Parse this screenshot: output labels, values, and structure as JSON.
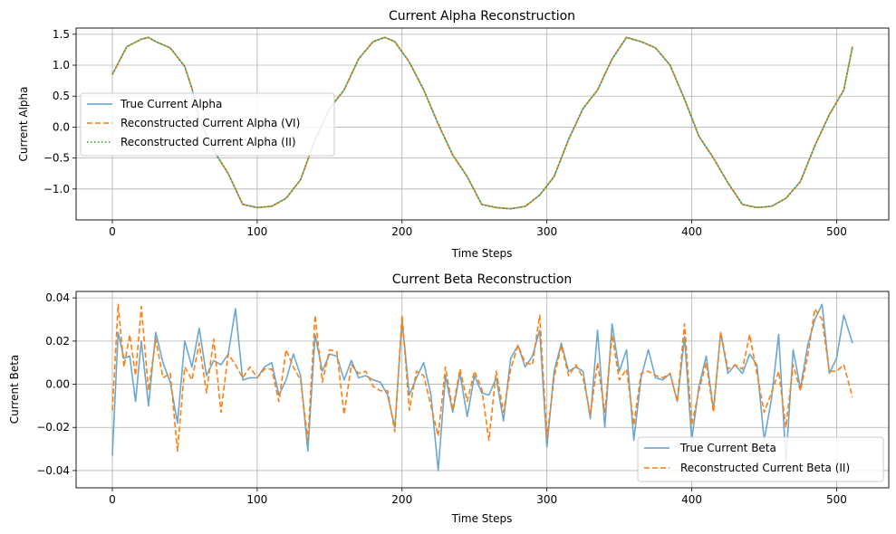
{
  "chart_data": [
    {
      "type": "line",
      "title": "Current Alpha Reconstruction",
      "xlabel": "Time Steps",
      "ylabel": "Current Alpha",
      "xlim": [
        -25,
        536
      ],
      "ylim": [
        -1.5,
        1.6
      ],
      "xticks": [
        0,
        100,
        200,
        300,
        400,
        500
      ],
      "yticks": [
        -1.0,
        -0.5,
        0.0,
        0.5,
        1.0,
        1.5
      ],
      "ytick_labels": [
        "−1.0",
        "−0.5",
        "0.0",
        "0.5",
        "1.0",
        "1.5"
      ],
      "grid": true,
      "legend_position": "center-left",
      "x": [
        0,
        10,
        20,
        25,
        30,
        40,
        50,
        55,
        60,
        70,
        80,
        90,
        100,
        110,
        120,
        130,
        140,
        150,
        160,
        170,
        180,
        188,
        195,
        205,
        215,
        225,
        235,
        245,
        255,
        265,
        275,
        285,
        295,
        305,
        315,
        325,
        335,
        345,
        355,
        365,
        375,
        385,
        395,
        405,
        415,
        425,
        435,
        445,
        455,
        465,
        475,
        485,
        495,
        505,
        511
      ],
      "series": [
        {
          "name": "True Current Alpha",
          "color": "#5b9ec9",
          "dash": "solid",
          "values": [
            0.85,
            1.3,
            1.42,
            1.45,
            1.38,
            1.28,
            0.98,
            0.62,
            0.12,
            -0.38,
            -0.75,
            -1.25,
            -1.3,
            -1.28,
            -1.15,
            -0.85,
            -0.2,
            0.3,
            0.6,
            1.1,
            1.38,
            1.45,
            1.38,
            1.05,
            0.6,
            0.05,
            -0.45,
            -0.8,
            -1.25,
            -1.3,
            -1.32,
            -1.28,
            -1.1,
            -0.8,
            -0.2,
            0.3,
            0.6,
            1.1,
            1.45,
            1.38,
            1.28,
            1.0,
            0.45,
            -0.15,
            -0.5,
            -0.9,
            -1.25,
            -1.3,
            -1.28,
            -1.15,
            -0.88,
            -0.3,
            0.2,
            0.6,
            1.3
          ]
        },
        {
          "name": "Reconstructed Current Alpha (VI)",
          "color": "#ff7f0e",
          "dash": "dashed",
          "values": [
            0.85,
            1.3,
            1.42,
            1.45,
            1.38,
            1.28,
            0.98,
            0.62,
            0.12,
            -0.38,
            -0.75,
            -1.25,
            -1.3,
            -1.28,
            -1.15,
            -0.85,
            -0.2,
            0.3,
            0.6,
            1.1,
            1.38,
            1.45,
            1.38,
            1.05,
            0.6,
            0.05,
            -0.45,
            -0.8,
            -1.25,
            -1.3,
            -1.32,
            -1.28,
            -1.1,
            -0.8,
            -0.2,
            0.3,
            0.6,
            1.1,
            1.45,
            1.38,
            1.28,
            1.0,
            0.45,
            -0.15,
            -0.5,
            -0.9,
            -1.25,
            -1.3,
            -1.28,
            -1.15,
            -0.88,
            -0.3,
            0.2,
            0.6,
            1.3
          ]
        },
        {
          "name": "Reconstructed Current Alpha (II)",
          "color": "#2ca02c",
          "dash": "dotted",
          "values": [
            0.85,
            1.3,
            1.42,
            1.45,
            1.38,
            1.28,
            0.98,
            0.62,
            0.12,
            -0.38,
            -0.75,
            -1.25,
            -1.3,
            -1.28,
            -1.15,
            -0.85,
            -0.2,
            0.3,
            0.6,
            1.1,
            1.38,
            1.45,
            1.38,
            1.05,
            0.6,
            0.05,
            -0.45,
            -0.8,
            -1.25,
            -1.3,
            -1.32,
            -1.28,
            -1.1,
            -0.8,
            -0.2,
            0.3,
            0.6,
            1.1,
            1.45,
            1.38,
            1.28,
            1.0,
            0.45,
            -0.15,
            -0.5,
            -0.9,
            -1.25,
            -1.3,
            -1.28,
            -1.15,
            -0.88,
            -0.3,
            0.2,
            0.6,
            1.3
          ]
        }
      ]
    },
    {
      "type": "line",
      "title": "Current Beta Reconstruction",
      "xlabel": "Time Steps",
      "ylabel": "Current Beta",
      "xlim": [
        -25,
        536
      ],
      "ylim": [
        -0.048,
        0.043
      ],
      "xticks": [
        0,
        100,
        200,
        300,
        400,
        500
      ],
      "yticks": [
        -0.04,
        -0.02,
        0.0,
        0.02,
        0.04
      ],
      "ytick_labels": [
        "−0.04",
        "−0.02",
        "0.00",
        "0.02",
        "0.04"
      ],
      "grid": true,
      "legend_position": "lower-right",
      "x": [
        0,
        4,
        8,
        12,
        16,
        20,
        25,
        30,
        35,
        40,
        45,
        50,
        55,
        60,
        65,
        70,
        75,
        80,
        85,
        90,
        95,
        100,
        105,
        110,
        115,
        120,
        125,
        130,
        135,
        140,
        145,
        150,
        155,
        160,
        165,
        170,
        175,
        180,
        185,
        190,
        195,
        200,
        205,
        210,
        215,
        220,
        225,
        230,
        235,
        240,
        245,
        250,
        255,
        260,
        265,
        270,
        275,
        280,
        285,
        290,
        295,
        300,
        305,
        310,
        315,
        320,
        325,
        330,
        335,
        340,
        345,
        350,
        355,
        360,
        365,
        370,
        375,
        380,
        385,
        390,
        395,
        400,
        405,
        410,
        415,
        420,
        425,
        430,
        435,
        440,
        445,
        450,
        455,
        460,
        465,
        470,
        475,
        480,
        485,
        490,
        495,
        500,
        505,
        511
      ],
      "series": [
        {
          "name": "True Current Beta",
          "color": "#5b9ec9",
          "dash": "solid",
          "values": [
            -0.033,
            0.024,
            0.012,
            0.013,
            -0.008,
            0.02,
            -0.01,
            0.024,
            0.01,
            0.001,
            -0.018,
            0.02,
            0.008,
            0.026,
            0.004,
            0.011,
            0.009,
            0.014,
            0.035,
            0.002,
            0.003,
            0.003,
            0.008,
            0.01,
            -0.005,
            0.002,
            0.014,
            0.004,
            -0.031,
            0.023,
            0.006,
            0.014,
            0.013,
            0.002,
            0.011,
            0.003,
            0.004,
            0.002,
            0.001,
            -0.005,
            -0.02,
            0.03,
            -0.005,
            0.003,
            0.01,
            -0.005,
            -0.04,
            0.004,
            -0.013,
            0.005,
            -0.015,
            0.004,
            -0.004,
            -0.005,
            0.003,
            -0.017,
            0.012,
            0.018,
            0.008,
            0.013,
            0.025,
            -0.029,
            0.006,
            0.019,
            0.006,
            0.008,
            0.006,
            -0.016,
            0.025,
            -0.02,
            0.028,
            0.006,
            0.016,
            -0.026,
            0.003,
            0.016,
            0.003,
            0.002,
            0.005,
            -0.008,
            0.022,
            -0.026,
            -0.001,
            0.013,
            -0.012,
            0.024,
            0.005,
            0.009,
            0.005,
            0.014,
            0.009,
            -0.026,
            -0.007,
            0.023,
            -0.036,
            0.016,
            -0.002,
            0.018,
            0.03,
            0.037,
            0.005,
            0.012,
            0.032,
            0.019
          ]
        },
        {
          "name": "Reconstructed Current Beta (II)",
          "color": "#ff7f0e",
          "dash": "dashed",
          "values": [
            -0.012,
            0.037,
            0.008,
            0.023,
            0.004,
            0.036,
            -0.003,
            0.021,
            0.003,
            0.005,
            -0.031,
            0.008,
            0.002,
            0.019,
            -0.004,
            0.021,
            -0.013,
            0.014,
            0.009,
            0.003,
            0.008,
            0.003,
            0.007,
            0.007,
            -0.008,
            0.016,
            0.008,
            0.002,
            -0.026,
            0.032,
            0.001,
            0.016,
            0.015,
            -0.014,
            0.009,
            0.005,
            0.006,
            -0.001,
            -0.003,
            -0.003,
            -0.022,
            0.032,
            -0.012,
            0.006,
            0.004,
            -0.01,
            -0.024,
            0.008,
            -0.012,
            0.007,
            -0.008,
            0.006,
            -0.002,
            -0.026,
            0.006,
            -0.013,
            0.007,
            0.018,
            0.01,
            0.009,
            0.032,
            -0.025,
            0.003,
            0.018,
            0.004,
            0.009,
            0.003,
            -0.014,
            0.01,
            -0.013,
            0.023,
            0.002,
            0.007,
            -0.019,
            0.005,
            0.006,
            0.004,
            0.003,
            0.005,
            -0.008,
            0.028,
            -0.019,
            -0.003,
            0.01,
            -0.013,
            0.024,
            0.007,
            0.009,
            0.007,
            0.023,
            0.005,
            -0.013,
            -0.004,
            0.006,
            -0.02,
            0.009,
            -0.003,
            0.013,
            0.035,
            0.03,
            0.006,
            0.006,
            0.009,
            -0.006
          ]
        }
      ]
    }
  ]
}
